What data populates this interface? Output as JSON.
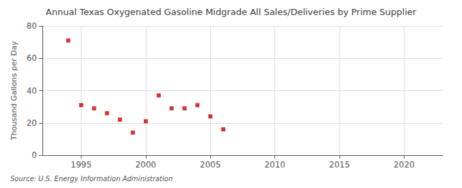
{
  "chart_data": {
    "type": "scatter",
    "title": "Annual Texas Oxygenated Gasoline Midgrade All Sales/Deliveries by Prime Supplier",
    "ylabel": "Thousand Gallons per Day",
    "annotation": "Source: U.S. Energy Information Administration",
    "x": [
      1994,
      1995,
      1996,
      1997,
      1998,
      1999,
      2000,
      2001,
      2002,
      2003,
      2004,
      2005,
      2006
    ],
    "values": [
      71,
      31,
      29,
      26,
      22,
      14,
      21,
      37,
      29,
      29,
      31,
      24,
      16
    ],
    "color": "#cc0000",
    "marker": "square",
    "xlim": [
      1992,
      2023
    ],
    "xticks": [
      1995,
      2000,
      2005,
      2010,
      2015,
      2020
    ],
    "ylim": [
      0,
      80
    ],
    "yticks": [
      0,
      20,
      40,
      60,
      80
    ],
    "grid": true
  }
}
